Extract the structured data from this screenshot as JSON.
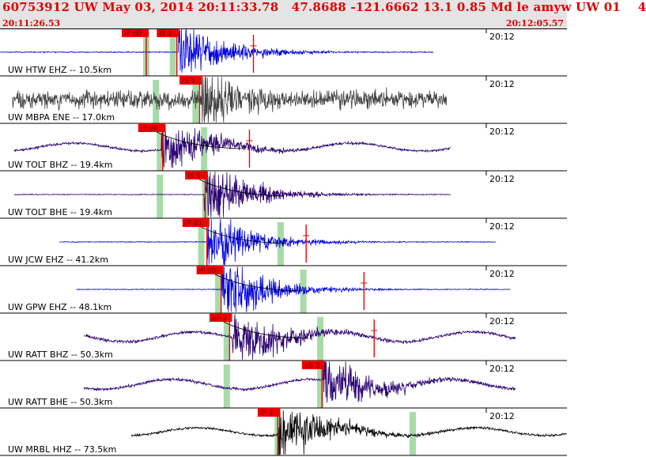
{
  "header": {
    "title": "60753912 UW May 03, 2014 20:11:33.78   47.8688 -121.6662 13.1 0.85 Md le amyw UW 01    4",
    "start_time": "20:11:26.53",
    "end_time": "20:12:05.57"
  },
  "chart_data": {
    "type": "line",
    "time_start": "20:11:26.53",
    "time_end": "20:12:05.57",
    "tick_label": "20:12",
    "colors": {
      "pick_box": "#ee0000",
      "pick_text": "#ffffff",
      "pick_window": "#a8dba8",
      "model_curve": "#000000",
      "header_text": "#e00000"
    },
    "traces": [
      {
        "label": "UW HTW EHZ -- 10.5km",
        "color": "#0000e0",
        "amp": 0.12,
        "waveform": "event",
        "data_start": 0.0,
        "data_end": 0.765,
        "event_at": 0.315,
        "picks": [
          {
            "label": "iP d0",
            "at": 0.258
          },
          {
            "label": "iS 1",
            "at": 0.312
          }
        ],
        "windows": [
          0.258,
          0.305
        ],
        "red_marks": [
          0.447
        ]
      },
      {
        "label": "UW MBPA ENE -- 17.0km",
        "color": "#404040",
        "amp": 0.55,
        "waveform": "noise",
        "data_start": 0.022,
        "data_end": 0.788,
        "event_at": 0.355,
        "picks": [
          {
            "label": "iS 1",
            "at": 0.352
          }
        ],
        "windows": [
          0.275,
          0.345
        ],
        "red_marks": []
      },
      {
        "label": "UW TOLT BHZ -- 19.4km",
        "color": "#2a0070",
        "amp": 0.3,
        "waveform": "sine",
        "data_start": 0.025,
        "data_end": 0.795,
        "event_at": 0.285,
        "picks": [
          {
            "label": "iP d0",
            "at": 0.287
          }
        ],
        "windows": [
          0.282,
          0.36
        ],
        "red_marks": [
          0.44
        ]
      },
      {
        "label": "UW TOLT BHE -- 19.4km",
        "color": "#2a0070",
        "amp": 0.1,
        "waveform": "event",
        "data_start": 0.025,
        "data_end": 0.795,
        "event_at": 0.36,
        "picks": [
          {
            "label": "iS 1",
            "at": 0.362
          }
        ],
        "windows": [
          0.282,
          0.362
        ],
        "red_marks": []
      },
      {
        "label": "UW JCW EHZ -- 41.2km",
        "color": "#0000e0",
        "amp": 0.1,
        "waveform": "event",
        "data_start": 0.105,
        "data_end": 0.875,
        "event_at": 0.365,
        "picks": [
          {
            "label": "iP d1",
            "at": 0.365
          }
        ],
        "windows": [
          0.355,
          0.495
        ],
        "red_marks": [
          0.54
        ]
      },
      {
        "label": "UW GPW EHZ -- 48.1km",
        "color": "#0000e0",
        "amp": 0.1,
        "waveform": "event",
        "data_start": 0.135,
        "data_end": 0.9,
        "event_at": 0.39,
        "picks": [
          {
            "label": "iP c0",
            "at": 0.39
          }
        ],
        "windows": [
          0.385,
          0.535
        ],
        "red_marks": [
          0.642
        ]
      },
      {
        "label": "UW RATT BHZ -- 50.3km",
        "color": "#2a0070",
        "amp": 0.38,
        "waveform": "sine",
        "data_start": 0.148,
        "data_end": 0.91,
        "event_at": 0.41,
        "picks": [
          {
            "label": "eP 2",
            "at": 0.405
          }
        ],
        "windows": [
          0.4,
          0.565
        ],
        "red_marks": [
          0.66
        ]
      },
      {
        "label": "UW RATT BHE -- 50.3km",
        "color": "#2a0070",
        "amp": 0.38,
        "waveform": "sine",
        "data_start": 0.148,
        "data_end": 0.91,
        "event_at": 0.57,
        "picks": [
          {
            "label": "eS 2",
            "at": 0.568
          }
        ],
        "windows": [
          0.4,
          0.565
        ],
        "red_marks": []
      },
      {
        "label": "UW MRBL HHZ -- 73.5km",
        "color": "#000000",
        "amp": 0.3,
        "waveform": "sine",
        "data_start": 0.232,
        "data_end": 1.0,
        "event_at": 0.49,
        "picks": [
          {
            "label": "iP 1",
            "at": 0.49
          }
        ],
        "windows": [
          0.49,
          0.728
        ],
        "red_marks": []
      }
    ]
  }
}
